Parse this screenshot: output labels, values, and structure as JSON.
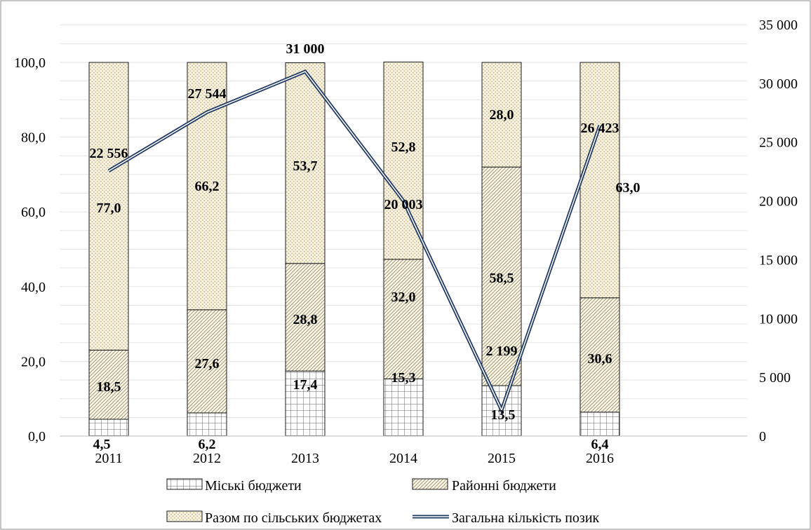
{
  "chart_data": {
    "type": "bar",
    "stacked": true,
    "categories": [
      "2011",
      "2012",
      "2013",
      "2014",
      "2015",
      "2016"
    ],
    "series": [
      {
        "name": "Міські бюджети",
        "pattern": "grid",
        "values": [
          4.5,
          6.2,
          17.4,
          15.3,
          13.5,
          6.4
        ]
      },
      {
        "name": "Районні бюджети",
        "pattern": "diagonal",
        "values": [
          18.5,
          27.6,
          28.8,
          32.0,
          58.5,
          30.6
        ]
      },
      {
        "name": "Разом по сільських бюджетах",
        "pattern": "dots",
        "values": [
          77.0,
          66.2,
          53.7,
          52.8,
          28.0,
          63.0
        ]
      }
    ],
    "line_series": {
      "name": "Загальна кількість позик",
      "axis": "right",
      "values": [
        22556,
        27544,
        31000,
        20003,
        2199,
        26423
      ],
      "labels": [
        "22 556",
        "27 544",
        "31 000",
        "20 003",
        "2 199",
        "26 423"
      ],
      "color": "#1f3864"
    },
    "bar_labels": [
      [
        "4,5",
        "6,2",
        "17,4",
        "15,3",
        "13,5",
        "6,4"
      ],
      [
        "18,5",
        "27,6",
        "28,8",
        "32,0",
        "58,5",
        "30,6"
      ],
      [
        "77,0",
        "66,2",
        "53,7",
        "52,8",
        "28,0",
        "63,0"
      ]
    ],
    "y_left": {
      "ylim": [
        0,
        110
      ],
      "ticks": [
        0,
        20,
        40,
        60,
        80,
        100
      ],
      "tick_labels": [
        "0,0",
        "20,0",
        "40,0",
        "60,0",
        "80,0",
        "100,0"
      ]
    },
    "y_right": {
      "ylim": [
        0,
        35000
      ],
      "ticks": [
        0,
        5000,
        10000,
        15000,
        20000,
        25000,
        30000,
        35000
      ],
      "tick_labels": [
        "0",
        "5 000",
        "10 000",
        "15 000",
        "20 000",
        "25 000",
        "30 000",
        "35 000"
      ]
    },
    "grid": true,
    "legend_placement": "bottom",
    "title": "",
    "xlabel": "",
    "ylabel": ""
  }
}
